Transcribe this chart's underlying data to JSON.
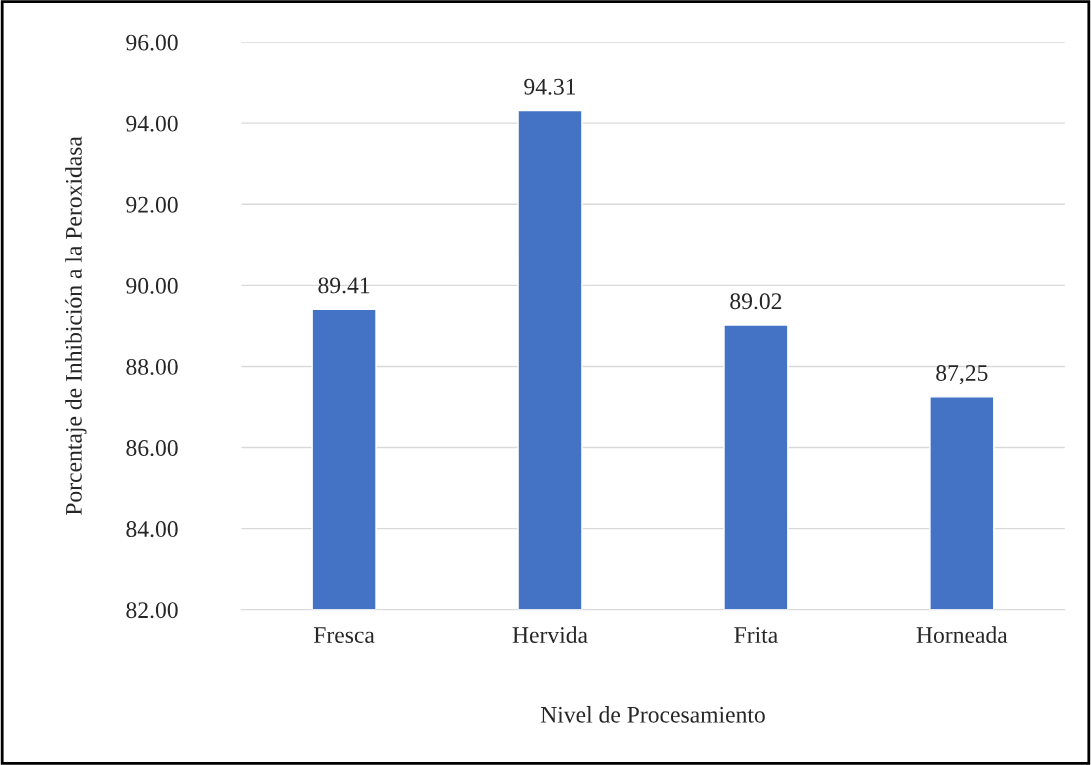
{
  "chart_data": {
    "type": "bar",
    "xlabel": "Nivel de Procesamiento",
    "ylabel": "Porcentaje de Inhibición a la Peroxidasa",
    "categories": [
      "Fresca",
      "Hervida",
      "Frita",
      "Horneada"
    ],
    "values": [
      89.41,
      94.31,
      89.02,
      87.25
    ],
    "value_labels": [
      "89.41",
      "94.31",
      "89.02",
      "87,25"
    ],
    "color": "#4472c4",
    "ylim": [
      82,
      96
    ],
    "yticks": [
      {
        "value": 82,
        "label": "82.00"
      },
      {
        "value": 84,
        "label": "84.00"
      },
      {
        "value": 86,
        "label": "86.00"
      },
      {
        "value": 88,
        "label": "88.00"
      },
      {
        "value": 90,
        "label": "90.00"
      },
      {
        "value": 92,
        "label": "92.00"
      },
      {
        "value": 94,
        "label": "94.00"
      },
      {
        "value": 96,
        "label": "96.00"
      }
    ],
    "grid": "y"
  }
}
